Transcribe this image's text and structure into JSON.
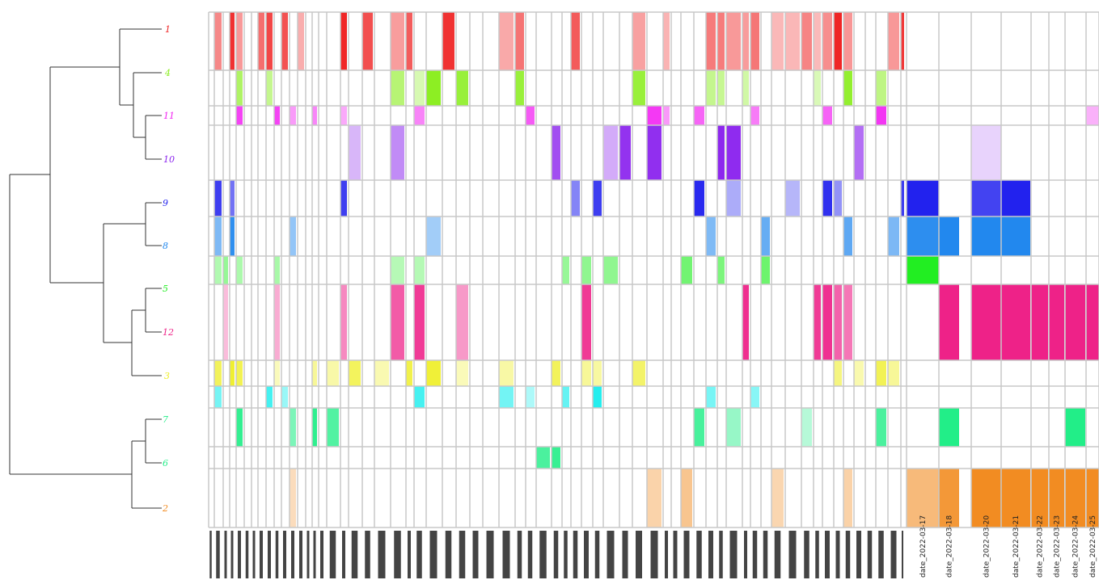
{
  "chart_data": {
    "type": "heatmap",
    "title": "",
    "xlabel": "",
    "ylabel": "",
    "legend": "none",
    "grid": true,
    "rows": [
      {
        "label": "1",
        "color": "#ef1f1f"
      },
      {
        "label": "4",
        "color": "#8cee22"
      },
      {
        "label": "11",
        "color": "#f21ff2"
      },
      {
        "label": "10",
        "color": "#8a22ee"
      },
      {
        "label": "9",
        "color": "#2222ee"
      },
      {
        "label": "8",
        "color": "#2288ee"
      },
      {
        "label": "5",
        "color": "#22ee22"
      },
      {
        "label": "12",
        "color": "#ee2288"
      },
      {
        "label": "3",
        "color": "#eeee22"
      },
      {
        "label": "",
        "color": "#22eeee"
      },
      {
        "label": "7",
        "color": "#22ee88"
      },
      {
        "label": "6",
        "color": "#22ee88"
      },
      {
        "label": "2",
        "color": "#f28c22"
      }
    ],
    "row_order_note": "",
    "column_labels": [
      "date_2022-03-17",
      "date_2022-03-18",
      "date_2022-03-20",
      "date_2022-03-21",
      "date_2022-03-22",
      "date_2022-03-23",
      "date_2022-03-24",
      "date_2022-03-25"
    ],
    "cells": [
      {
        "row": "9",
        "column": "date_2022-03-17",
        "value": 1.0
      },
      {
        "row": "9",
        "column": "date_2022-03-20",
        "value": 0.85
      },
      {
        "row": "9",
        "column": "date_2022-03-21",
        "value": 1.0
      },
      {
        "row": "8",
        "column": "date_2022-03-17",
        "value": 0.95
      },
      {
        "row": "8",
        "column": "date_2022-03-18",
        "value": 1.0
      },
      {
        "row": "8",
        "column": "date_2022-03-20",
        "value": 1.0
      },
      {
        "row": "8",
        "column": "date_2022-03-21",
        "value": 1.0
      },
      {
        "row": "5",
        "column": "date_2022-03-17",
        "value": 1.0
      },
      {
        "row": "12",
        "column": "date_2022-03-18",
        "value": 1.0
      },
      {
        "row": "12",
        "column": "date_2022-03-20",
        "value": 1.0
      },
      {
        "row": "12",
        "column": "date_2022-03-21",
        "value": 1.0
      },
      {
        "row": "12",
        "column": "date_2022-03-22",
        "value": 1.0
      },
      {
        "row": "12",
        "column": "date_2022-03-23",
        "value": 1.0
      },
      {
        "row": "12",
        "column": "date_2022-03-24",
        "value": 1.0
      },
      {
        "row": "12",
        "column": "date_2022-03-25",
        "value": 1.0
      },
      {
        "row": "7",
        "column": "date_2022-03-18",
        "value": 1.0
      },
      {
        "row": "7",
        "column": "date_2022-03-24",
        "value": 1.0
      },
      {
        "row": "2",
        "column": "date_2022-03-17",
        "value": 0.6
      },
      {
        "row": "2",
        "column": "date_2022-03-18",
        "value": 0.9
      },
      {
        "row": "2",
        "column": "date_2022-03-20",
        "value": 1.0
      },
      {
        "row": "2",
        "column": "date_2022-03-21",
        "value": 1.0
      },
      {
        "row": "2",
        "column": "date_2022-03-22",
        "value": 1.0
      },
      {
        "row": "2",
        "column": "date_2022-03-23",
        "value": 1.0
      },
      {
        "row": "2",
        "column": "date_2022-03-24",
        "value": 1.0
      },
      {
        "row": "2",
        "column": "date_2022-03-25",
        "value": 1.0
      },
      {
        "row": "11",
        "column": "date_2022-03-25",
        "value": 0.35
      },
      {
        "row": "10",
        "column": "date_2022-03-20",
        "value": 0.2
      }
    ],
    "dendrogram": "rows clustered: ((1,(4,(11,10))),((9,8),(5,12),3)),(7,6),2"
  }
}
